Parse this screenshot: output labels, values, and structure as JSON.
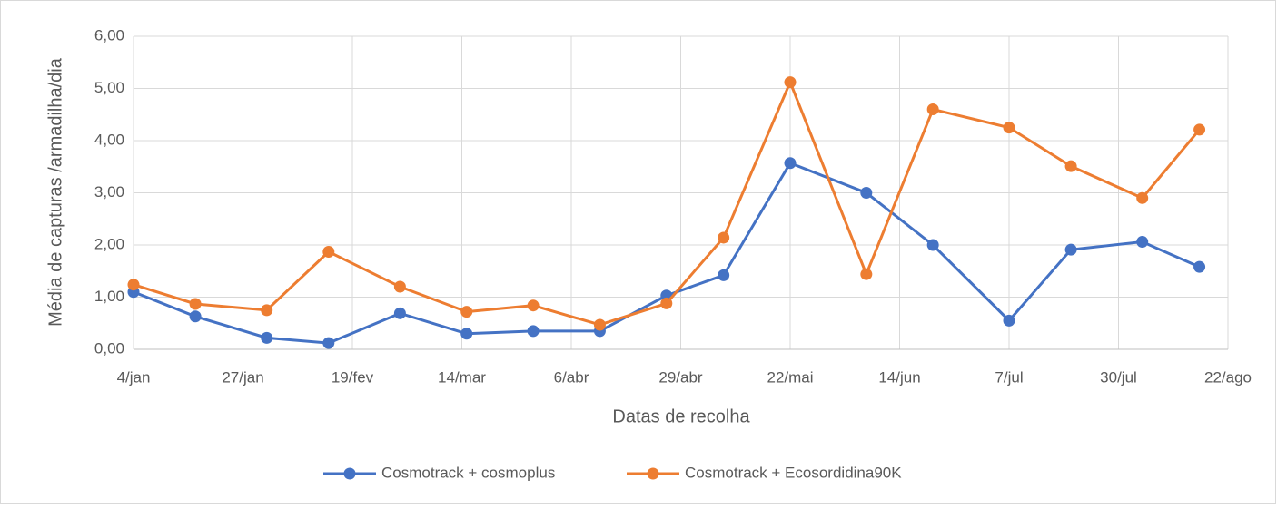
{
  "chart_data": {
    "type": "line",
    "x_label": "Datas de recolha",
    "y_label": "Média de capturas /armadilha/dia",
    "x": [
      4,
      17,
      32,
      45,
      60,
      74,
      88,
      102,
      116,
      128,
      142,
      158,
      172,
      188,
      201,
      216,
      228
    ],
    "series": [
      {
        "name": "Cosmotrack + cosmoplus",
        "color": "#4472c4",
        "values": [
          1.1,
          0.63,
          0.22,
          0.12,
          0.69,
          0.3,
          0.35,
          0.35,
          1.03,
          1.42,
          3.57,
          3.0,
          2.0,
          0.55,
          1.91,
          2.06,
          1.58
        ]
      },
      {
        "name": "Cosmotrack + Ecosordidina90K",
        "color": "#ed7d31",
        "values": [
          1.24,
          0.87,
          0.75,
          1.87,
          1.2,
          0.72,
          0.84,
          0.47,
          0.88,
          2.14,
          5.12,
          1.44,
          4.6,
          4.25,
          3.51,
          2.9,
          4.21
        ]
      }
    ],
    "xlim": [
      4,
      234
    ],
    "xticks": [
      {
        "value": 4,
        "label": "4/jan"
      },
      {
        "value": 27,
        "label": "27/jan"
      },
      {
        "value": 50,
        "label": "19/fev"
      },
      {
        "value": 73,
        "label": "14/mar"
      },
      {
        "value": 96,
        "label": "6/abr"
      },
      {
        "value": 119,
        "label": "29/abr"
      },
      {
        "value": 142,
        "label": "22/mai"
      },
      {
        "value": 165,
        "label": "14/jun"
      },
      {
        "value": 188,
        "label": "7/jul"
      },
      {
        "value": 211,
        "label": "30/jul"
      },
      {
        "value": 234,
        "label": "22/ago"
      }
    ],
    "ylim": [
      0,
      6
    ],
    "yticks": [
      {
        "value": 0,
        "label": "0,00"
      },
      {
        "value": 1,
        "label": "1,00"
      },
      {
        "value": 2,
        "label": "2,00"
      },
      {
        "value": 3,
        "label": "3,00"
      },
      {
        "value": 4,
        "label": "4,00"
      },
      {
        "value": 5,
        "label": "5,00"
      },
      {
        "value": 6,
        "label": "6,00"
      }
    ],
    "grid": true,
    "legend": "bottom"
  }
}
